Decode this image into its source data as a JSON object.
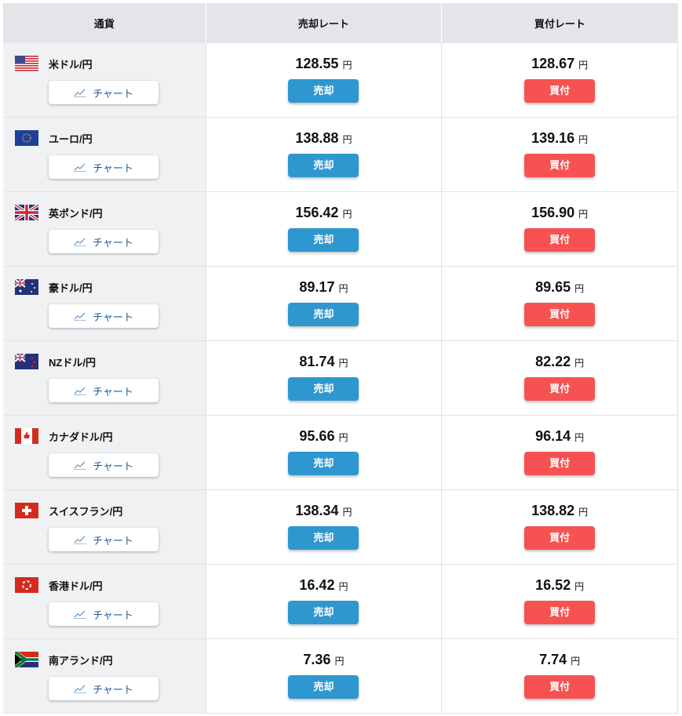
{
  "header": {
    "currency": "通貨",
    "sell_rate": "売却レート",
    "buy_rate": "買付レート"
  },
  "labels": {
    "chart": "チャート",
    "sell": "売却",
    "buy": "買付",
    "yen": "円"
  },
  "colors": {
    "sell": "#2e97d0",
    "buy": "#f75252",
    "header_bg": "#e4e5e9"
  },
  "rows": [
    {
      "flag": "us-flag-icon",
      "name": "米ドル/円",
      "sell": "128.55",
      "buy": "128.67"
    },
    {
      "flag": "eu-flag-icon",
      "name": "ユーロ/円",
      "sell": "138.88",
      "buy": "139.16"
    },
    {
      "flag": "uk-flag-icon",
      "name": "英ポンド/円",
      "sell": "156.42",
      "buy": "156.90"
    },
    {
      "flag": "au-flag-icon",
      "name": "豪ドル/円",
      "sell": "89.17",
      "buy": "89.65"
    },
    {
      "flag": "nz-flag-icon",
      "name": "NZドル/円",
      "sell": "81.74",
      "buy": "82.22"
    },
    {
      "flag": "ca-flag-icon",
      "name": "カナダドル/円",
      "sell": "95.66",
      "buy": "96.14"
    },
    {
      "flag": "ch-flag-icon",
      "name": "スイスフラン/円",
      "sell": "138.34",
      "buy": "138.82"
    },
    {
      "flag": "hk-flag-icon",
      "name": "香港ドル/円",
      "sell": "16.42",
      "buy": "16.52"
    },
    {
      "flag": "za-flag-icon",
      "name": "南アランド/円",
      "sell": "7.36",
      "buy": "7.74"
    }
  ]
}
